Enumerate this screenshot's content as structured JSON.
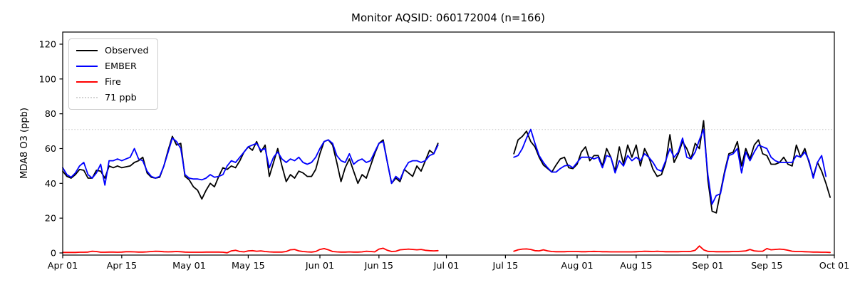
{
  "title": "Monitor AQSID: 060172004 (n=166)",
  "ylabel": "MDA8 O3 (ppb)",
  "chart_data": {
    "type": "line",
    "x_unit": "days_since_Apr_01",
    "xlim_days": [
      0,
      183
    ],
    "ylim": [
      0,
      127
    ],
    "grid": false,
    "legend_position": "upper-left",
    "xticks": [
      {
        "day": 0,
        "label": "Apr 01"
      },
      {
        "day": 14,
        "label": "Apr 15"
      },
      {
        "day": 30,
        "label": "May 01"
      },
      {
        "day": 44,
        "label": "May 15"
      },
      {
        "day": 61,
        "label": "Jun 01"
      },
      {
        "day": 75,
        "label": "Jun 15"
      },
      {
        "day": 91,
        "label": "Jul 01"
      },
      {
        "day": 105,
        "label": "Jul 15"
      },
      {
        "day": 122,
        "label": "Aug 01"
      },
      {
        "day": 136,
        "label": "Aug 15"
      },
      {
        "day": 153,
        "label": "Sep 01"
      },
      {
        "day": 167,
        "label": "Sep 15"
      },
      {
        "day": 183,
        "label": "Oct 01"
      }
    ],
    "yticks": [
      0,
      20,
      40,
      60,
      80,
      100,
      120
    ],
    "threshold": {
      "label": "71 ppb",
      "value": 71,
      "color": "#d3d3d3",
      "style": "dotted"
    },
    "series": [
      {
        "name": "Observed",
        "color": "#000000",
        "segments": [
          {
            "start_day": 0,
            "values": [
              47,
              44,
              43,
              45,
              48,
              47.5,
              43,
              43,
              47.5,
              47,
              43,
              50,
              49,
              50,
              49,
              49.5,
              50,
              52,
              53,
              55,
              46,
              43.5,
              43,
              43.5,
              50,
              59,
              67,
              62,
              63,
              44,
              42,
              38,
              36,
              31,
              36,
              40,
              38,
              44,
              49,
              48,
              50,
              49,
              53,
              58,
              61,
              59,
              64,
              58,
              62,
              44,
              52,
              60,
              50,
              41,
              45,
              43,
              47,
              46,
              44,
              44,
              48,
              57,
              64,
              65,
              62,
              52,
              41,
              49,
              54,
              47,
              40,
              45,
              43,
              50,
              57,
              63,
              65,
              52,
              40,
              43,
              41,
              48,
              46,
              44,
              50,
              47,
              53,
              59,
              57,
              63
            ]
          },
          {
            "start_day": 107,
            "values": [
              57,
              65,
              67,
              70,
              64,
              61,
              55,
              50.5,
              48.5,
              46.5,
              50.5,
              54,
              55,
              49,
              48.5,
              51,
              58,
              61,
              53,
              56,
              56,
              50,
              60,
              55,
              47,
              61,
              51,
              62,
              55,
              62,
              50,
              60,
              55,
              48,
              44,
              45,
              52,
              68,
              52,
              57,
              64,
              60,
              54,
              63,
              60,
              76,
              42,
              24,
              23,
              35,
              47,
              57,
              58,
              64,
              50,
              60,
              54,
              62,
              65,
              57,
              56,
              51,
              51,
              52,
              55,
              51,
              50,
              62,
              55,
              60,
              52,
              44,
              52,
              47,
              40,
              32
            ]
          }
        ]
      },
      {
        "name": "EMBER",
        "color": "#0000ff",
        "segments": [
          {
            "start_day": 0,
            "values": [
              49,
              45,
              43.5,
              46,
              50,
              52,
              45,
              43,
              46,
              51,
              39,
              53,
              53,
              54,
              53,
              54,
              55,
              60,
              54,
              53,
              47,
              44,
              43,
              44,
              50,
              58,
              66,
              64,
              60,
              45,
              43,
              42.5,
              42.5,
              42,
              43,
              45,
              43.5,
              44,
              45,
              50,
              53,
              52,
              55,
              58,
              61,
              62,
              63,
              59,
              60,
              49,
              55,
              58,
              54,
              52,
              54,
              53,
              55,
              52,
              51,
              52,
              55,
              60,
              64,
              65,
              63,
              56,
              53,
              52,
              57,
              51,
              53,
              54,
              52,
              53,
              58,
              63,
              64,
              52,
              40,
              44,
              42,
              48,
              52,
              53,
              53,
              52,
              53,
              56,
              57,
              62
            ]
          },
          {
            "start_day": 107,
            "values": [
              55,
              56,
              60,
              66,
              71,
              63,
              56,
              52,
              49,
              46.5,
              46.5,
              48.5,
              50,
              50.5,
              49,
              52,
              55,
              55,
              55,
              54,
              55,
              49,
              56,
              55,
              46,
              53,
              50,
              56,
              53,
              55,
              53,
              57,
              55,
              52,
              48,
              47,
              53,
              60,
              55,
              58,
              66,
              55,
              54,
              58,
              65,
              71,
              45,
              28,
              33,
              34,
              46,
              56,
              57,
              60,
              46,
              58,
              53,
              58,
              62,
              61,
              60,
              55,
              53,
              52,
              52,
              52,
              52,
              56,
              55,
              58,
              53,
              43,
              52,
              56,
              44,
              null
            ]
          }
        ]
      },
      {
        "name": "Fire",
        "color": "#ff0000",
        "segments": [
          {
            "start_day": 0,
            "values": [
              0.3,
              0.3,
              0.3,
              0.3,
              0.4,
              0.4,
              0.5,
              1.0,
              0.8,
              0.4,
              0.4,
              0.5,
              0.5,
              0.4,
              0.5,
              0.7,
              0.7,
              0.6,
              0.5,
              0.5,
              0.6,
              0.8,
              1.0,
              0.9,
              0.7,
              0.6,
              0.7,
              0.8,
              0.7,
              0.5,
              0.4,
              0.4,
              0.4,
              0.4,
              0.5,
              0.5,
              0.5,
              0.5,
              0.4,
              0.1,
              1.2,
              1.5,
              0.8,
              0.6,
              1.2,
              1.3,
              1.0,
              1.2,
              0.8,
              0.6,
              0.5,
              0.5,
              0.5,
              0.8,
              1.8,
              2.0,
              1.2,
              0.8,
              0.6,
              0.5,
              0.8,
              2.0,
              2.5,
              1.8,
              0.8,
              0.6,
              0.5,
              0.5,
              0.6,
              0.5,
              0.5,
              0.6,
              1.0,
              0.8,
              0.6,
              2.2,
              2.7,
              1.5,
              0.8,
              1.0,
              1.8,
              2.0,
              2.2,
              2.0,
              1.8,
              2.0,
              1.5,
              1.3,
              1.2,
              1.3
            ]
          },
          {
            "start_day": 107,
            "values": [
              1.0,
              1.8,
              2.2,
              2.3,
              2.0,
              1.3,
              1.2,
              1.8,
              1.2,
              0.8,
              0.7,
              0.7,
              0.7,
              0.8,
              0.8,
              0.8,
              0.7,
              0.7,
              0.8,
              0.9,
              0.8,
              0.7,
              0.7,
              0.6,
              0.6,
              0.6,
              0.6,
              0.6,
              0.6,
              0.7,
              0.8,
              1.0,
              0.9,
              0.8,
              1.0,
              0.8,
              0.7,
              0.7,
              0.7,
              0.7,
              0.8,
              0.8,
              0.9,
              1.5,
              4.0,
              1.8,
              0.9,
              0.8,
              0.7,
              0.7,
              0.7,
              0.7,
              0.8,
              0.8,
              1.0,
              1.2,
              2.0,
              1.2,
              1.0,
              1.0,
              2.5,
              1.8,
              2.0,
              2.2,
              2.0,
              1.5,
              1.0,
              0.8,
              0.8,
              0.7,
              0.6,
              0.5,
              0.5,
              0.4,
              0.4,
              0.3
            ]
          }
        ]
      }
    ]
  }
}
